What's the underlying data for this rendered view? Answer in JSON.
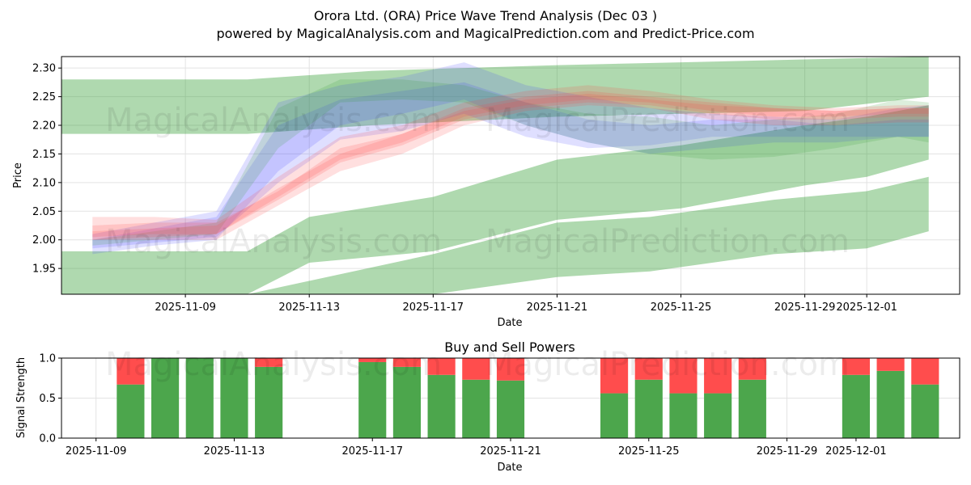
{
  "header": {
    "title": "Orora Ltd. (ORA) Price Wave Trend Analysis (Dec 03 )",
    "subtitle": "powered by MagicalAnalysis.com and MagicalPrediction.com and Predict-Price.com"
  },
  "watermarks": [
    "MagicalAnalysis.com",
    "MagicalPrediction.com"
  ],
  "colors": {
    "green": "#2e9a2e",
    "red": "#ff4444",
    "blue": "#4444ff",
    "bar_green": "#4ca64c",
    "bar_red": "#ff4d4d"
  },
  "chart_data": [
    {
      "type": "area",
      "xlabel": "Date",
      "ylabel": "Price",
      "xlim": [
        "2025-11-05",
        "2025-12-04"
      ],
      "ylim": [
        1.905,
        2.32
      ],
      "x_ticks": [
        "2025-11-09",
        "2025-11-13",
        "2025-11-17",
        "2025-11-21",
        "2025-11-25",
        "2025-11-29",
        "2025-12-01"
      ],
      "y_ticks": [
        1.95,
        2.0,
        2.05,
        2.1,
        2.15,
        2.2,
        2.25,
        2.3
      ],
      "grid": true,
      "green_bands": [
        {
          "name": "upper wave band",
          "x": [
            "2025-11-05",
            "2025-11-11",
            "2025-11-15",
            "2025-11-21",
            "2025-11-25",
            "2025-11-29",
            "2025-12-03"
          ],
          "upper": [
            2.28,
            2.28,
            2.295,
            2.305,
            2.31,
            2.315,
            2.32
          ],
          "lower": [
            2.185,
            2.185,
            2.2,
            2.215,
            2.22,
            2.225,
            2.25
          ]
        },
        {
          "name": "middle wave band",
          "x": [
            "2025-11-05",
            "2025-11-11",
            "2025-11-13",
            "2025-11-17",
            "2025-11-21",
            "2025-11-25",
            "2025-11-29",
            "2025-12-01",
            "2025-12-03"
          ],
          "upper": [
            1.98,
            1.98,
            2.04,
            2.075,
            2.14,
            2.165,
            2.2,
            2.215,
            2.235
          ],
          "lower": [
            1.905,
            1.905,
            1.96,
            1.98,
            2.035,
            2.055,
            2.095,
            2.11,
            2.14
          ]
        },
        {
          "name": "lower wave band",
          "x": [
            "2025-11-05",
            "2025-11-11",
            "2025-11-17",
            "2025-11-21",
            "2025-11-24",
            "2025-11-28",
            "2025-12-01",
            "2025-12-03"
          ],
          "upper": [
            1.905,
            1.905,
            1.975,
            2.03,
            2.04,
            2.07,
            2.085,
            2.11
          ],
          "lower": [
            1.905,
            1.905,
            1.905,
            1.935,
            1.945,
            1.975,
            1.985,
            2.015
          ]
        }
      ],
      "wave_series": [
        {
          "color": "blue",
          "x": [
            "2025-11-06",
            "2025-11-08",
            "2025-11-10",
            "2025-11-12",
            "2025-11-14",
            "2025-11-16",
            "2025-11-18",
            "2025-11-20",
            "2025-11-22",
            "2025-11-24",
            "2025-11-26",
            "2025-11-28",
            "2025-11-30",
            "2025-12-02",
            "2025-12-03"
          ],
          "upper": [
            2.01,
            2.03,
            2.05,
            2.24,
            2.27,
            2.285,
            2.31,
            2.27,
            2.25,
            2.23,
            2.22,
            2.215,
            2.21,
            2.23,
            2.235
          ],
          "lower": [
            1.975,
            1.99,
            2.0,
            2.12,
            2.2,
            2.22,
            2.245,
            2.2,
            2.17,
            2.15,
            2.16,
            2.17,
            2.17,
            2.18,
            2.18
          ]
        },
        {
          "color": "blue",
          "x": [
            "2025-11-06",
            "2025-11-08",
            "2025-11-10",
            "2025-11-12",
            "2025-11-14",
            "2025-11-16",
            "2025-11-18",
            "2025-11-20",
            "2025-11-22",
            "2025-11-24",
            "2025-11-26",
            "2025-11-28",
            "2025-11-30",
            "2025-12-02",
            "2025-12-03"
          ],
          "upper": [
            2.0,
            2.02,
            2.04,
            2.2,
            2.245,
            2.26,
            2.275,
            2.24,
            2.21,
            2.2,
            2.21,
            2.21,
            2.2,
            2.21,
            2.21
          ],
          "lower": [
            1.985,
            1.995,
            2.005,
            2.1,
            2.175,
            2.19,
            2.22,
            2.18,
            2.16,
            2.165,
            2.18,
            2.18,
            2.18,
            2.18,
            2.18
          ]
        },
        {
          "color": "green",
          "x": [
            "2025-11-06",
            "2025-11-08",
            "2025-11-10",
            "2025-11-12",
            "2025-11-14",
            "2025-11-16",
            "2025-11-18",
            "2025-11-20",
            "2025-11-22",
            "2025-11-24",
            "2025-11-26",
            "2025-11-28",
            "2025-11-30",
            "2025-12-02",
            "2025-12-03"
          ],
          "upper": [
            2.0,
            2.015,
            2.03,
            2.23,
            2.28,
            2.28,
            2.27,
            2.24,
            2.22,
            2.215,
            2.2,
            2.21,
            2.22,
            2.245,
            2.24
          ],
          "lower": [
            1.99,
            2.0,
            2.01,
            2.16,
            2.24,
            2.245,
            2.24,
            2.2,
            2.17,
            2.15,
            2.14,
            2.145,
            2.16,
            2.18,
            2.17
          ]
        },
        {
          "color": "red",
          "x": [
            "2025-11-06",
            "2025-11-08",
            "2025-11-10",
            "2025-11-12",
            "2025-11-14",
            "2025-11-16",
            "2025-11-18",
            "2025-11-20",
            "2025-11-22",
            "2025-11-24",
            "2025-11-26",
            "2025-11-28",
            "2025-11-30",
            "2025-12-02",
            "2025-12-03"
          ],
          "upper": [
            2.04,
            2.04,
            2.035,
            2.11,
            2.18,
            2.2,
            2.24,
            2.26,
            2.27,
            2.26,
            2.245,
            2.235,
            2.23,
            2.235,
            2.235
          ],
          "lower": [
            2.0,
            2.0,
            2.0,
            2.06,
            2.12,
            2.15,
            2.2,
            2.225,
            2.235,
            2.23,
            2.21,
            2.2,
            2.2,
            2.205,
            2.205
          ]
        },
        {
          "color": "red",
          "x": [
            "2025-11-06",
            "2025-11-08",
            "2025-11-10",
            "2025-11-12",
            "2025-11-14",
            "2025-11-16",
            "2025-11-18",
            "2025-11-20",
            "2025-11-22",
            "2025-11-24",
            "2025-11-26",
            "2025-11-28",
            "2025-11-30",
            "2025-12-02",
            "2025-12-03"
          ],
          "upper": [
            2.025,
            2.03,
            2.03,
            2.085,
            2.16,
            2.185,
            2.225,
            2.245,
            2.255,
            2.245,
            2.235,
            2.23,
            2.225,
            2.23,
            2.23
          ],
          "lower": [
            2.005,
            2.01,
            2.01,
            2.07,
            2.135,
            2.165,
            2.21,
            2.23,
            2.24,
            2.235,
            2.22,
            2.21,
            2.21,
            2.215,
            2.215
          ]
        },
        {
          "color": "red",
          "x": [
            "2025-11-06",
            "2025-11-08",
            "2025-11-10",
            "2025-11-12",
            "2025-11-14",
            "2025-11-16",
            "2025-11-18",
            "2025-11-20",
            "2025-11-22",
            "2025-11-24",
            "2025-11-26",
            "2025-11-28",
            "2025-11-30",
            "2025-12-02",
            "2025-12-03"
          ],
          "upper": [
            2.015,
            2.02,
            2.025,
            2.09,
            2.15,
            2.185,
            2.23,
            2.25,
            2.26,
            2.25,
            2.24,
            2.23,
            2.225,
            2.23,
            2.23
          ],
          "lower": [
            2.0,
            2.005,
            2.01,
            2.075,
            2.14,
            2.17,
            2.215,
            2.235,
            2.245,
            2.24,
            2.225,
            2.215,
            2.215,
            2.22,
            2.22
          ]
        }
      ]
    },
    {
      "type": "bar",
      "title": "Buy and Sell Powers",
      "xlabel": "Date",
      "ylabel": "Signal Strength",
      "xlim": [
        "2025-11-08",
        "2025-12-04"
      ],
      "ylim": [
        0,
        1.0
      ],
      "y_ticks": [
        0.0,
        0.5,
        1.0
      ],
      "x_ticks": [
        "2025-11-09",
        "2025-11-13",
        "2025-11-17",
        "2025-11-21",
        "2025-11-25",
        "2025-11-29",
        "2025-12-01"
      ],
      "categories": [
        "2025-11-10",
        "2025-11-11",
        "2025-11-12",
        "2025-11-13",
        "2025-11-14",
        "2025-11-17",
        "2025-11-18",
        "2025-11-19",
        "2025-11-20",
        "2025-11-21",
        "2025-11-24",
        "2025-11-25",
        "2025-11-26",
        "2025-11-27",
        "2025-11-28",
        "2025-12-01",
        "2025-12-02",
        "2025-12-03"
      ],
      "series": [
        {
          "name": "Buy",
          "color": "green",
          "values": [
            0.67,
            1.0,
            1.0,
            1.0,
            0.89,
            0.95,
            0.89,
            0.79,
            0.73,
            0.72,
            0.56,
            0.73,
            0.56,
            0.56,
            0.73,
            0.79,
            0.84,
            0.67
          ]
        },
        {
          "name": "Sell",
          "color": "red",
          "values": [
            0.33,
            0.0,
            0.0,
            0.0,
            0.11,
            0.05,
            0.11,
            0.21,
            0.27,
            0.28,
            0.44,
            0.27,
            0.44,
            0.44,
            0.27,
            0.21,
            0.16,
            0.33
          ]
        }
      ]
    }
  ]
}
